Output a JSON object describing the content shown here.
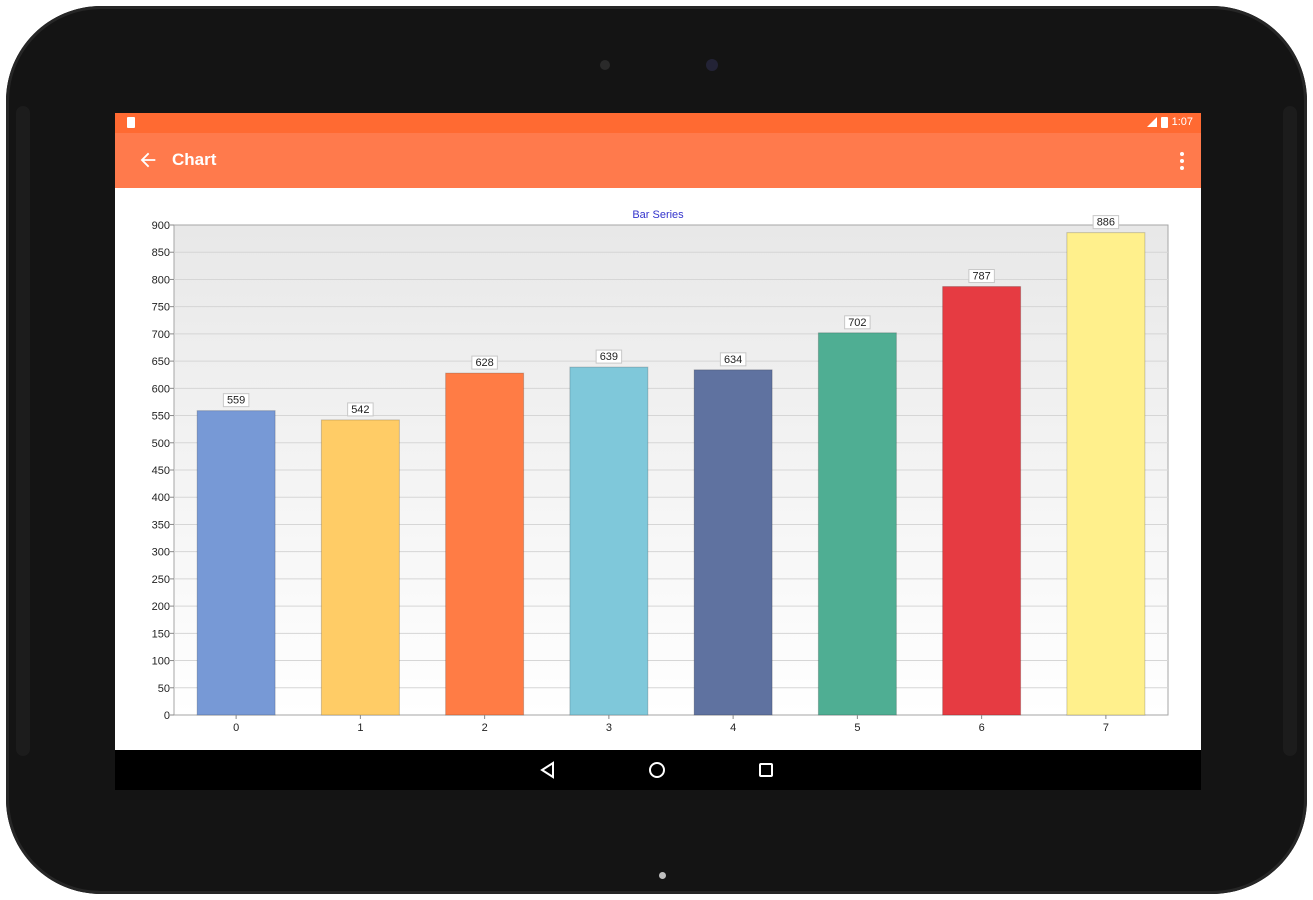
{
  "status_bar": {
    "time": "1:07"
  },
  "app_bar": {
    "title": "Chart"
  },
  "chart_data": {
    "type": "bar",
    "title": "Bar Series",
    "categories": [
      "0",
      "1",
      "2",
      "3",
      "4",
      "5",
      "6",
      "7"
    ],
    "values": [
      559,
      542,
      628,
      639,
      634,
      702,
      787,
      886
    ],
    "colors": [
      "#7799d6",
      "#ffcc66",
      "#ff7c45",
      "#7fc8da",
      "#5f72a0",
      "#4fae93",
      "#e63b42",
      "#fff08c"
    ],
    "ylim": [
      0,
      900
    ],
    "yticks": [
      "0",
      "50",
      "100",
      "150",
      "200",
      "250",
      "300",
      "350",
      "400",
      "450",
      "500",
      "550",
      "600",
      "650",
      "700",
      "750",
      "800",
      "850",
      "900"
    ],
    "grid": true,
    "title_color": "#3333cc"
  }
}
